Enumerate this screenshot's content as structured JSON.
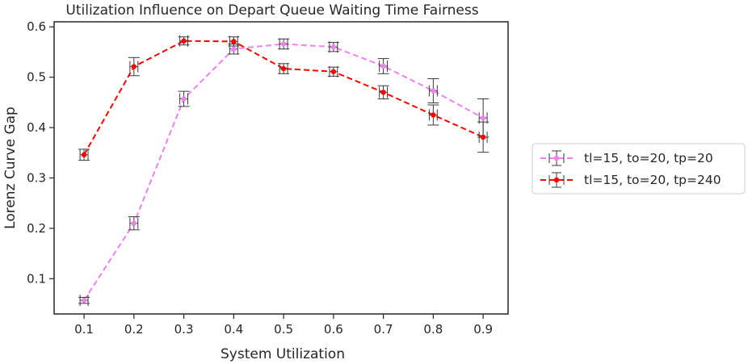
{
  "chart_data": {
    "type": "line",
    "title": "Utilization Influence on Depart Queue Waiting Time Fairness",
    "xlabel": "System Utilization",
    "ylabel": "Lorenz Curve Gap",
    "xlim": [
      0.04,
      0.95
    ],
    "ylim": [
      0.03,
      0.61
    ],
    "x_ticks": [
      "0.1",
      "0.2",
      "0.3",
      "0.4",
      "0.5",
      "0.6",
      "0.7",
      "0.8",
      "0.9"
    ],
    "y_ticks": [
      "0.1",
      "0.2",
      "0.3",
      "0.4",
      "0.5",
      "0.6"
    ],
    "x": [
      0.1,
      0.2,
      0.3,
      0.4,
      0.5,
      0.6,
      0.7,
      0.8,
      0.9
    ],
    "grid": false,
    "legend_position": "outside-right",
    "series": [
      {
        "name": "tl=15, to=20, tp=20",
        "color": "#ee82ee",
        "line_style": "dashed",
        "values": [
          0.057,
          0.21,
          0.457,
          0.556,
          0.566,
          0.56,
          0.522,
          0.473,
          0.419
        ],
        "y_err": [
          0.006,
          0.013,
          0.015,
          0.01,
          0.01,
          0.009,
          0.015,
          0.024,
          0.038
        ],
        "x_err": 0.008
      },
      {
        "name": "tl=15, to=20, tp=240",
        "color": "#ff0000",
        "line_style": "dashed",
        "values": [
          0.346,
          0.521,
          0.572,
          0.571,
          0.517,
          0.511,
          0.47,
          0.425,
          0.381
        ],
        "y_err": [
          0.011,
          0.018,
          0.008,
          0.009,
          0.01,
          0.009,
          0.013,
          0.02,
          0.03
        ],
        "x_err": 0.008
      }
    ]
  }
}
